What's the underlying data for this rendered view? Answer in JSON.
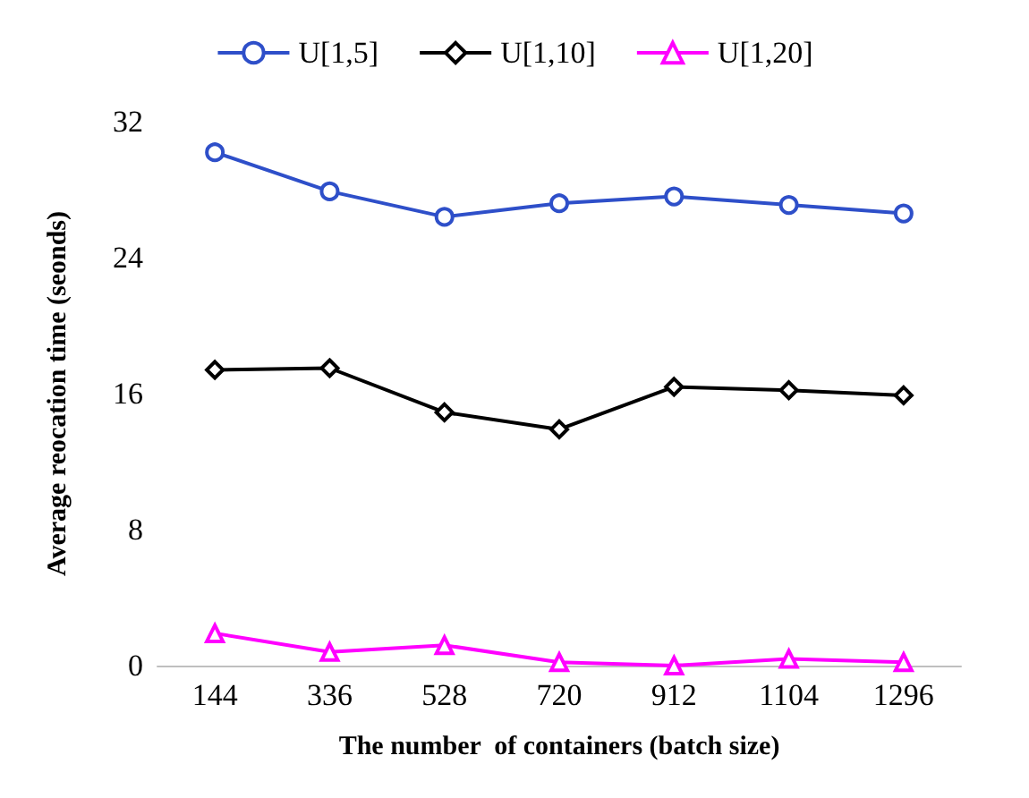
{
  "chart_data": {
    "type": "line",
    "xlabel": "The number  of containers (batch size)",
    "ylabel": "Average reocation time (seonds)",
    "categories": [
      "144",
      "336",
      "528",
      "720",
      "912",
      "1104",
      "1296"
    ],
    "series": [
      {
        "name": "U[1,5]",
        "color": "#2e4fc9",
        "marker": "circle",
        "values": [
          30.2,
          27.9,
          26.4,
          27.2,
          27.6,
          27.1,
          26.6
        ]
      },
      {
        "name": "U[1,10]",
        "color": "#000000",
        "marker": "diamond",
        "values": [
          17.4,
          17.5,
          14.9,
          13.9,
          16.4,
          16.2,
          15.9
        ]
      },
      {
        "name": "U[1,20]",
        "color": "#ff00ff",
        "marker": "triangle",
        "values": [
          1.9,
          0.8,
          1.2,
          0.2,
          0.0,
          0.4,
          0.2
        ]
      }
    ],
    "ylim": [
      0,
      32
    ],
    "yticks": [
      0,
      8,
      16,
      24,
      32
    ],
    "grid": false,
    "legend": "top",
    "line_style": "solid"
  }
}
